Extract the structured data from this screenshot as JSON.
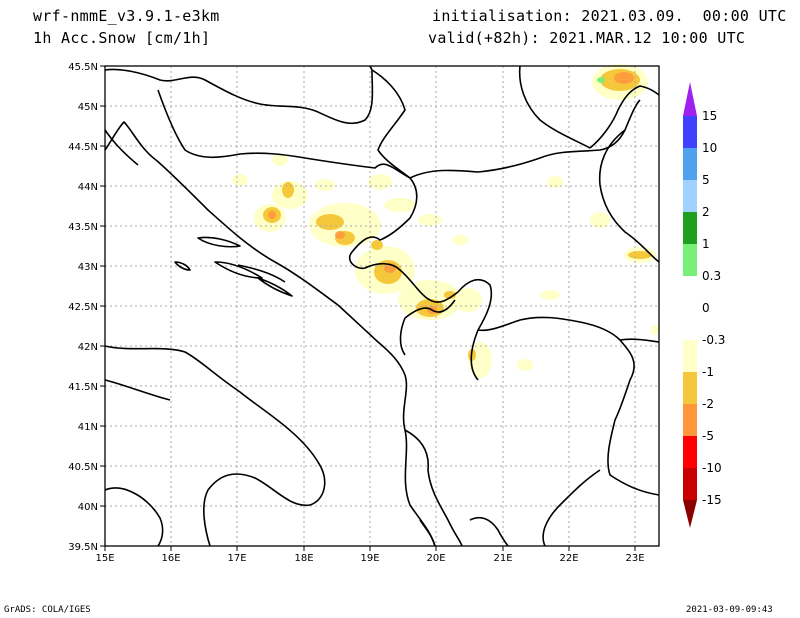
{
  "header": {
    "model": "wrf-nmmE_v3.9.1-e3km",
    "field": "1h Acc.Snow [cm/1h]",
    "initialisation": "initialisation: 2021.03.09.  00:00 UTC",
    "valid": "valid(+82h): 2021.MAR.12 10:00 UTC"
  },
  "footer": {
    "left": "GrADS: COLA/IGES",
    "right": "2021-03-09-09:43"
  },
  "map": {
    "lon_range": [
      15,
      23.3
    ],
    "lat_range": [
      39.5,
      45.5
    ],
    "lon_ticks": [
      "15E",
      "16E",
      "17E",
      "18E",
      "19E",
      "20E",
      "21E",
      "22E",
      "23E"
    ],
    "lat_ticks": [
      "39.5N",
      "40N",
      "40.5N",
      "41N",
      "41.5N",
      "42N",
      "42.5N",
      "43N",
      "43.5N",
      "44N",
      "44.5N",
      "45N",
      "45.5N"
    ],
    "grid": true
  },
  "colorbar": {
    "labels": [
      "15",
      "10",
      "5",
      "2",
      "1",
      "0.3",
      "0",
      "-0.3",
      "-1",
      "-2",
      "-5",
      "-10",
      "-15"
    ],
    "colors": {
      "top_arrow": "#a020f0",
      "c1": "#6a3cf5",
      "c2": "#4040ff",
      "c3": "#50a0f0",
      "c4": "#a0d2ff",
      "c5": "#1ea01e",
      "c6": "#78f078",
      "c7": "#ffffff",
      "c8": "#ffffc8",
      "c9": "#f5c83c",
      "c10": "#ff963c",
      "c11": "#ff0000",
      "c12": "#c80000",
      "bottom_arrow": "#8c0000"
    }
  }
}
